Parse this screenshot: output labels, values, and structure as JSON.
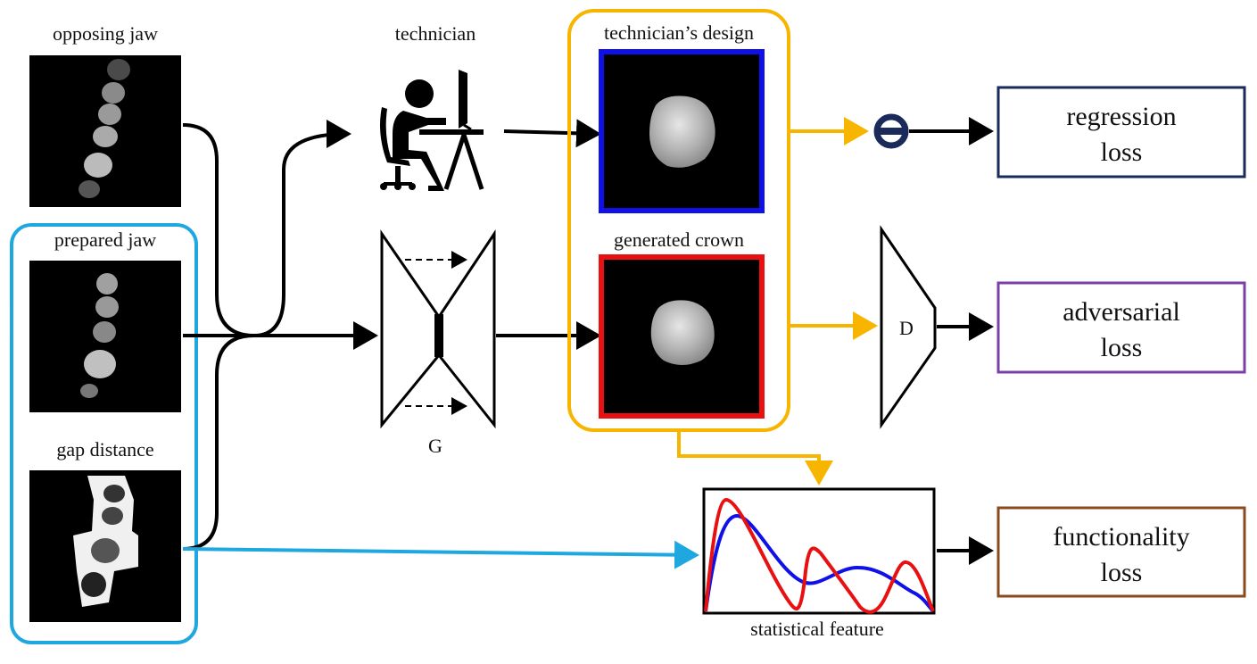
{
  "inputs": {
    "opposing_jaw": "opposing jaw",
    "prepared_jaw": "prepared jaw",
    "gap_distance": "gap distance"
  },
  "technician": {
    "label": "technician"
  },
  "generator": {
    "label": "G"
  },
  "outputs": {
    "technician_design": "technician’s design",
    "generated_crown": "generated crown"
  },
  "discriminator": {
    "label": "D"
  },
  "stat_feature": {
    "label": "statistical feature"
  },
  "losses": {
    "regression_line1": "regression",
    "regression_line2": "loss",
    "adversarial_line1": "adversarial",
    "adversarial_line2": "loss",
    "functionality_line1": "functionality",
    "functionality_line2": "loss"
  },
  "colors": {
    "input_group": "#1fa8e0",
    "output_group": "#f7b500",
    "technician_frame": "#1010e8",
    "generated_frame": "#e81010",
    "regression_box": "#1a2a5a",
    "adversarial_box": "#7a3fa8",
    "functionality_box": "#8a4a1e",
    "curve_red": "#e81010",
    "curve_blue": "#1010e8"
  }
}
